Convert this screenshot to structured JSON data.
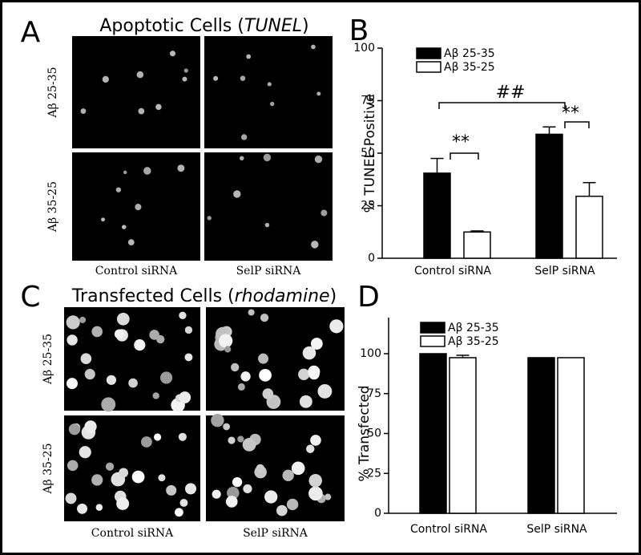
{
  "chart_data": [
    {
      "type": "bar",
      "panel_label": "B",
      "ylabel": "% TUNEL-Positive",
      "categories": [
        "Control siRNA",
        "SelP siRNA"
      ],
      "series": [
        {
          "name": "Aβ 25-35",
          "color": "#000000",
          "values": [
            40.5,
            59
          ],
          "errors": [
            7,
            3.5
          ]
        },
        {
          "name": "Aβ 35-25",
          "color": "#ffffff",
          "values": [
            12.5,
            29.5
          ],
          "errors": [
            0.5,
            6.5
          ]
        }
      ],
      "ylim": [
        0,
        100
      ],
      "yticks": [
        0,
        25,
        50,
        75,
        100
      ],
      "annotations": [
        "**",
        "**",
        "##"
      ]
    },
    {
      "type": "bar",
      "panel_label": "D",
      "ylabel": "% Transfected",
      "categories": [
        "Control siRNA",
        "SelP siRNA"
      ],
      "series": [
        {
          "name": "Aβ 25-35",
          "color": "#000000",
          "values": [
            100,
            97.5
          ],
          "errors": [
            null,
            null
          ]
        },
        {
          "name": "Aβ 35-25",
          "color": "#ffffff",
          "values": [
            97.5,
            97.5
          ],
          "errors": [
            1.5,
            null
          ]
        }
      ],
      "ylim": [
        0,
        100
      ],
      "yticks": [
        0,
        25,
        50,
        75,
        100
      ]
    }
  ],
  "image_panels": [
    {
      "panel_label": "A",
      "title_prefix": "Apoptotic Cells (",
      "title_italic": "TUNEL",
      "title_suffix": ")",
      "row_labels": [
        "Aβ 25-35",
        "Aβ 35-25"
      ],
      "column_labels": [
        "Control siRNA",
        "SelP siRNA"
      ]
    },
    {
      "panel_label": "C",
      "title_prefix": "Transfected Cells (",
      "title_italic": "rhodamine",
      "title_suffix": ")",
      "row_labels": [
        "Aβ 25-35",
        "Aβ 35-25"
      ],
      "column_labels": [
        "Control siRNA",
        "SelP siRNA"
      ]
    }
  ]
}
